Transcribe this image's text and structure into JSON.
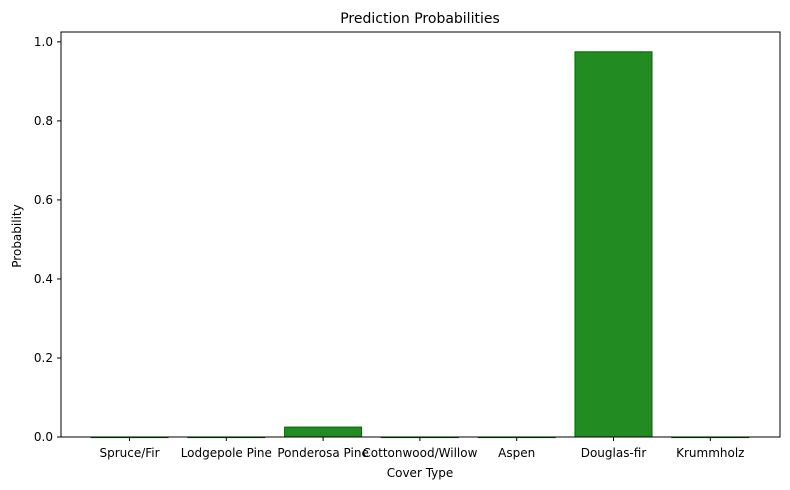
{
  "chart_data": {
    "type": "bar",
    "title": "Prediction Probabilities",
    "xlabel": "Cover Type",
    "ylabel": "Probability",
    "categories": [
      "Spruce/Fir",
      "Lodgepole Pine",
      "Ponderosa Pine",
      "Cottonwood/Willow",
      "Aspen",
      "Douglas-fir",
      "Krummholz"
    ],
    "values": [
      0.0,
      0.0,
      0.025,
      0.0,
      0.0,
      0.975,
      0.0
    ],
    "ylim": [
      0,
      1.025
    ],
    "yticks": [
      0.0,
      0.2,
      0.4,
      0.6,
      0.8,
      1.0
    ],
    "ytick_labels": [
      "0.0",
      "0.2",
      "0.4",
      "0.6",
      "0.8",
      "1.0"
    ],
    "grid": false,
    "legend": "none",
    "bar_color": "#228b22",
    "bar_edge_color": "#006400"
  }
}
